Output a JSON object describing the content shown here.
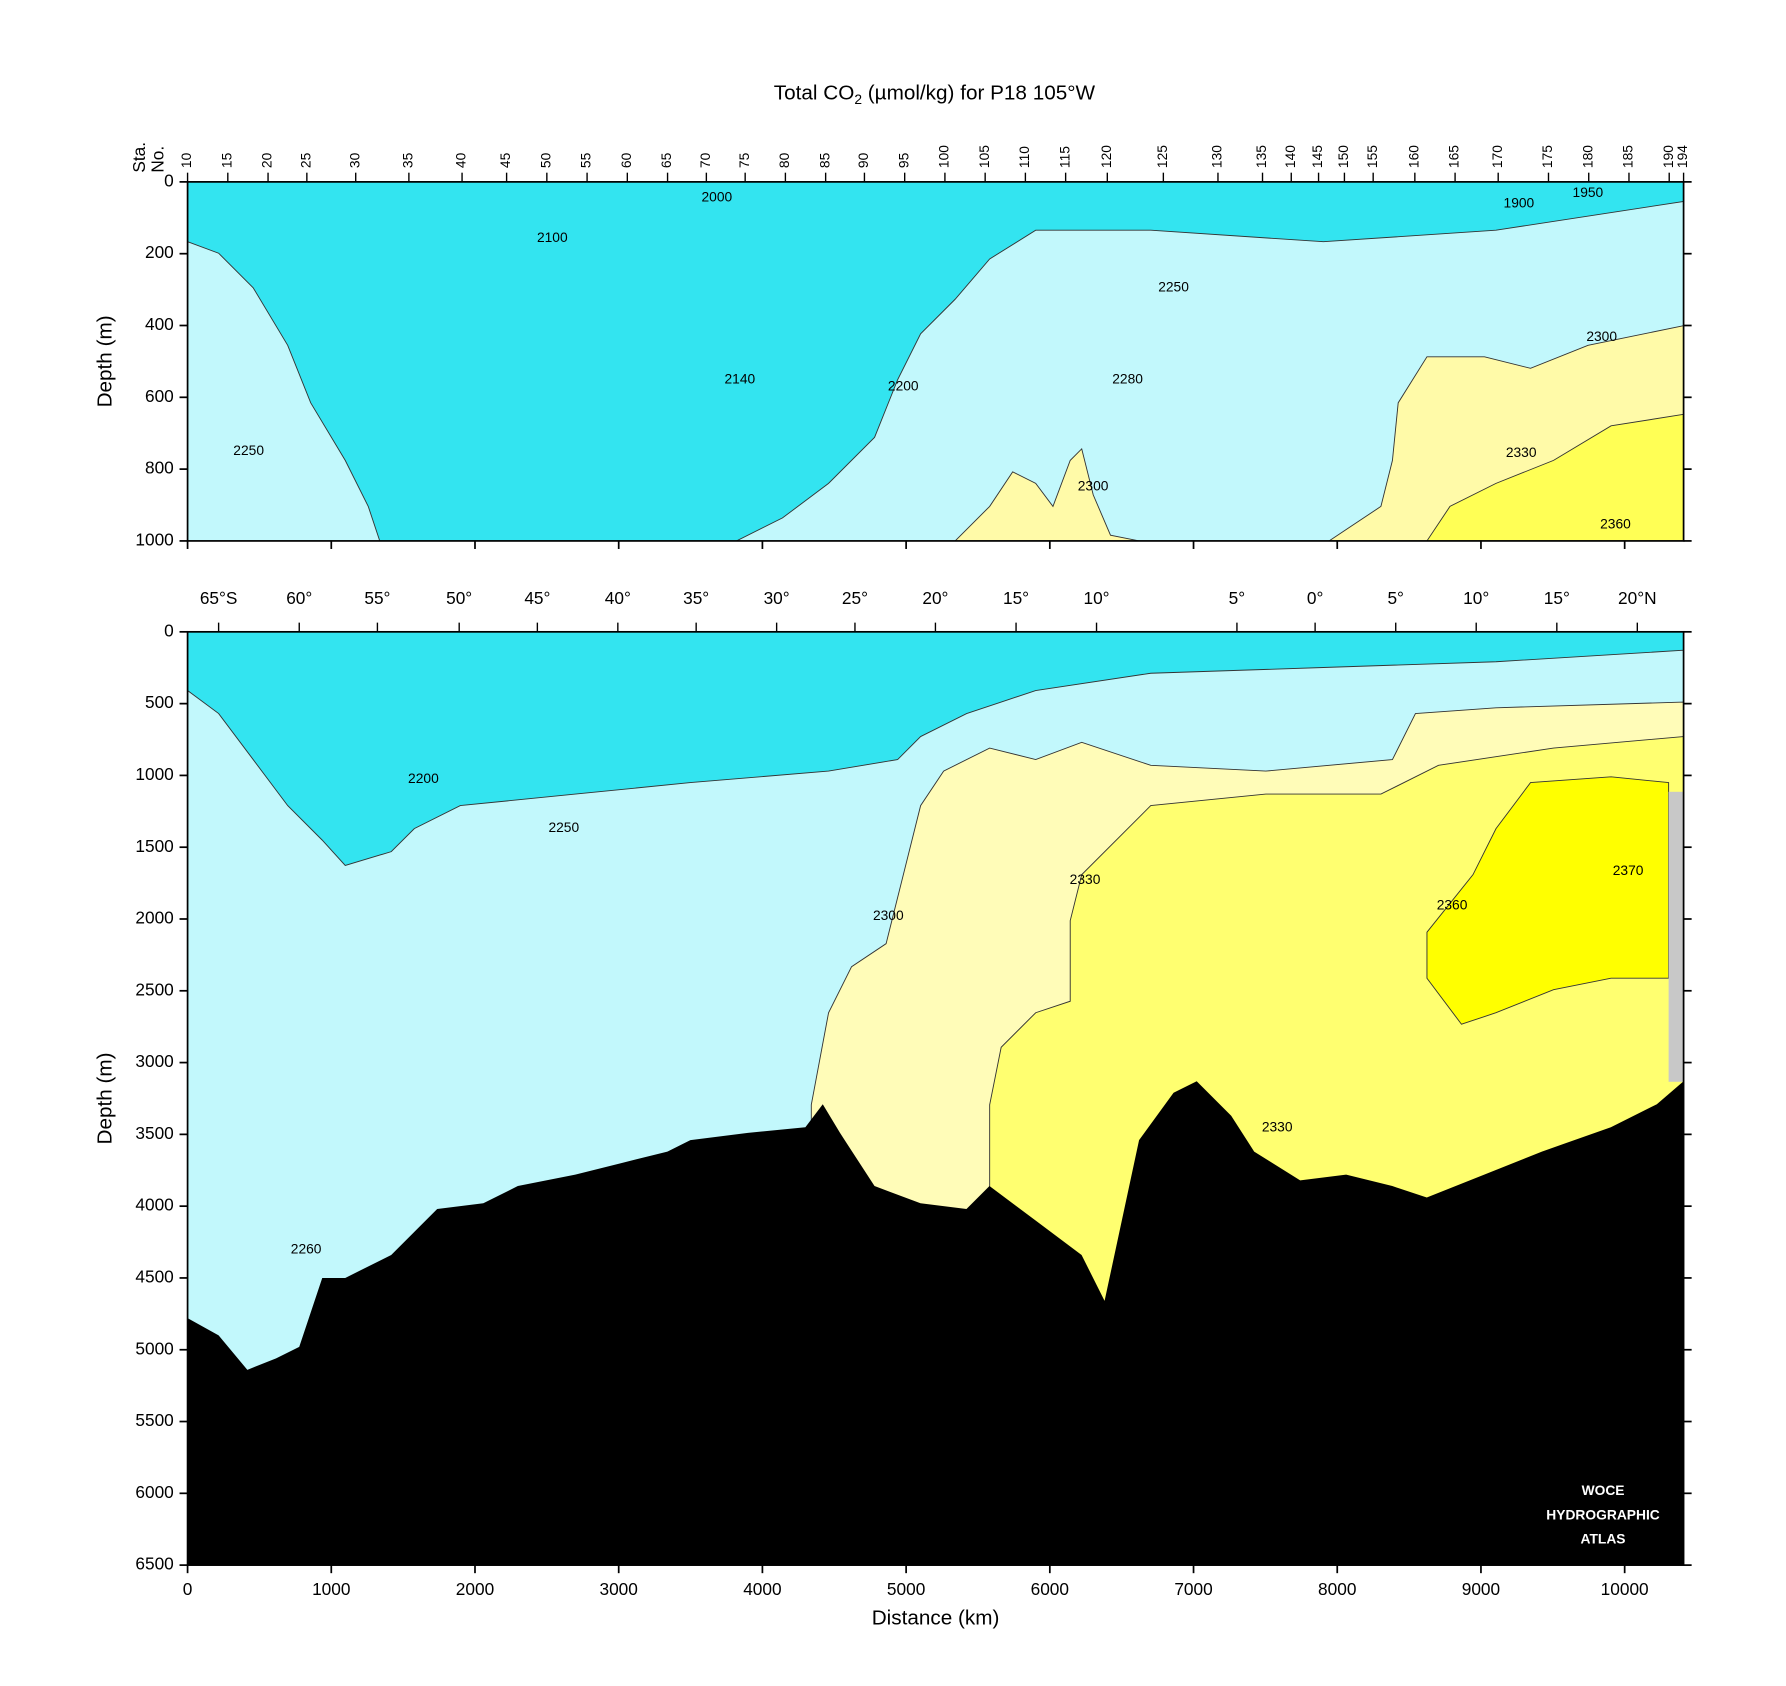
{
  "chart_data": [
    {
      "type": "contour",
      "title": {
        "text": "Total CO",
        "subscript": "2",
        "rest": " (µmol/kg) for P18 105°W"
      },
      "ylabel": "Depth (m)",
      "xlim": [
        0,
        10410
      ],
      "ylim": [
        0,
        1000
      ],
      "y_inverted": true,
      "yticks": [
        0,
        200,
        400,
        600,
        800,
        1000
      ],
      "station_label": [
        "Sta.",
        "No."
      ],
      "stations": [
        10,
        15,
        20,
        25,
        30,
        35,
        40,
        45,
        50,
        55,
        60,
        65,
        70,
        75,
        80,
        85,
        90,
        95,
        100,
        105,
        110,
        115,
        120,
        125,
        130,
        135,
        140,
        145,
        150,
        155,
        160,
        165,
        170,
        175,
        180,
        185,
        190,
        194
      ],
      "station_x": [
        0,
        280,
        560,
        830,
        1170,
        1540,
        1910,
        2220,
        2500,
        2780,
        3060,
        3340,
        3610,
        3880,
        4160,
        4440,
        4710,
        4990,
        5270,
        5550,
        5830,
        6110,
        6400,
        6790,
        7170,
        7480,
        7680,
        7870,
        8050,
        8250,
        8540,
        8820,
        9120,
        9470,
        9750,
        10030,
        10310,
        10410
      ],
      "annotations": [
        {
          "label": 2000,
          "x": 3683,
          "depth": 45
        },
        {
          "label": 2100,
          "x": 2538,
          "depth": 157
        },
        {
          "label": 2140,
          "x": 3843,
          "depth": 551
        },
        {
          "label": 2200,
          "x": 4980,
          "depth": 571
        },
        {
          "label": 2250,
          "x": 6861,
          "depth": 295
        },
        {
          "label": 2280,
          "x": 6541,
          "depth": 551
        },
        {
          "label": 2300,
          "x": 9840,
          "depth": 433
        },
        {
          "label": 2250,
          "x": 425,
          "depth": 750
        },
        {
          "label": 2330,
          "x": 9280,
          "depth": 756
        },
        {
          "label": 2300,
          "x": 6301,
          "depth": 849
        },
        {
          "label": 2360,
          "x": 9936,
          "depth": 955
        },
        {
          "label": 1900,
          "x": 9264,
          "depth": 61
        },
        {
          "label": 1950,
          "x": 9744,
          "depth": 32
        }
      ]
    },
    {
      "type": "contour",
      "ylabel": "Depth (m)",
      "xlabel": "Distance (km)",
      "xlim": [
        0,
        10410
      ],
      "ylim": [
        0,
        6500
      ],
      "y_inverted": true,
      "yticks": [
        0,
        500,
        1000,
        1500,
        2000,
        2500,
        3000,
        3500,
        4000,
        4500,
        5000,
        5500,
        6000,
        6500
      ],
      "xticks": [
        0,
        1000,
        2000,
        3000,
        4000,
        5000,
        6000,
        7000,
        8000,
        9000,
        10000
      ],
      "lat_labels": [
        "65°S",
        "60°",
        "55°",
        "50°",
        "45°",
        "40°",
        "35°",
        "30°",
        "25°",
        "20°",
        "15°",
        "10°",
        "5°",
        "0°",
        "5°",
        "10°",
        "15°",
        "20°N"
      ],
      "lat_x": [
        216,
        777,
        1321,
        1890,
        2434,
        2994,
        3539,
        4099,
        4644,
        5204,
        5765,
        6325,
        7302,
        7846,
        8407,
        8967,
        9528,
        10088
      ],
      "seafloor": {
        "color": "#000000",
        "x": [
          0,
          216,
          416,
          616,
          777,
          937,
          1097,
          1417,
          1577,
          1737,
          2058,
          2298,
          2698,
          3018,
          3339,
          3499,
          3899,
          4299,
          4420,
          4540,
          4780,
          5100,
          5420,
          5580,
          5901,
          6221,
          6381,
          6621,
          6861,
          7022,
          7262,
          7422,
          7742,
          8062,
          8383,
          8623,
          9023,
          9424,
          9904,
          10224,
          10410
        ],
        "depth": [
          4780,
          4900,
          5140,
          5060,
          4980,
          4500,
          4500,
          4340,
          4180,
          4020,
          3980,
          3860,
          3780,
          3700,
          3620,
          3540,
          3490,
          3450,
          3290,
          3490,
          3860,
          3980,
          4020,
          3860,
          4100,
          4340,
          4660,
          3540,
          3210,
          3130,
          3370,
          3620,
          3820,
          3780,
          3860,
          3940,
          3780,
          3620,
          3450,
          3290,
          3130
        ]
      },
      "annotations": [
        {
          "label": 2200,
          "x": 1641,
          "depth": 1026
        },
        {
          "label": 2250,
          "x": 2618,
          "depth": 1370
        },
        {
          "label": 2330,
          "x": 6245,
          "depth": 1731
        },
        {
          "label": 2300,
          "x": 4876,
          "depth": 1980
        },
        {
          "label": 2360,
          "x": 8799,
          "depth": 1907
        },
        {
          "label": 2370,
          "x": 10024,
          "depth": 1667
        },
        {
          "label": 2330,
          "x": 7582,
          "depth": 3454
        },
        {
          "label": 2260,
          "x": 825,
          "depth": 4304
        }
      ],
      "watermark": [
        "WOCE",
        "HYDROGRAPHIC",
        "ATLAS"
      ]
    }
  ]
}
